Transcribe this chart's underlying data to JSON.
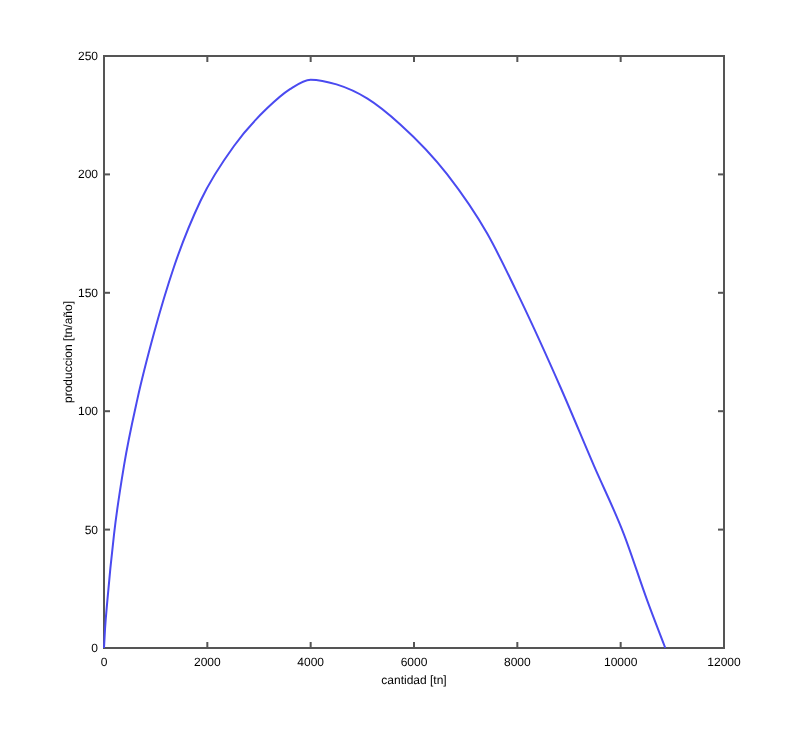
{
  "chart_data": {
    "type": "line",
    "xlabel": "cantidad [tn]",
    "ylabel": "produccion [tn/año]",
    "series": [
      {
        "color": "#4a4af0",
        "x": [
          0,
          20,
          65,
          194,
          387,
          645,
          968,
          1355,
          1871,
          2516,
          3161,
          3600,
          4000,
          4500,
          5100,
          5740,
          6643,
          7417,
          8063,
          8837,
          9482,
          10063,
          10515,
          10864
        ],
        "values": [
          0,
          8,
          20,
          48,
          77,
          105,
          133,
          161,
          189,
          212,
          228,
          236,
          240,
          238,
          232,
          221,
          200,
          175,
          147,
          110,
          77,
          48,
          20,
          0
        ]
      }
    ],
    "xlim": [
      0,
      12000
    ],
    "xticks": [
      0,
      2000,
      4000,
      6000,
      8000,
      10000,
      12000
    ],
    "ylim": [
      0,
      250
    ],
    "yticks": [
      0,
      50,
      100,
      150,
      200,
      250
    ]
  }
}
